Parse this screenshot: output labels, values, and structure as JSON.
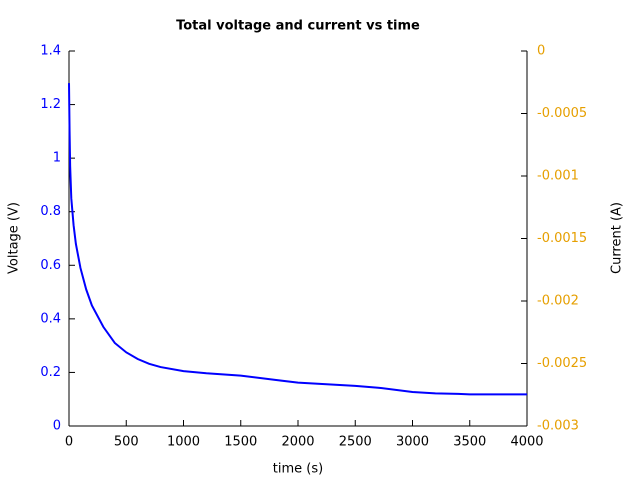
{
  "chart_data": {
    "type": "line",
    "title": "Total voltage and current vs time",
    "x_label": "time (s)",
    "y_label": "Voltage (V)",
    "y2_label": "Current (A)",
    "xlim": [
      0,
      4000
    ],
    "xticks": [
      0,
      500,
      1000,
      1500,
      2000,
      2500,
      3000,
      3500,
      4000
    ],
    "ylim": [
      0,
      1.4
    ],
    "yticks": [
      0,
      0.2,
      0.4,
      0.6,
      0.8,
      1,
      1.2,
      1.4
    ],
    "y_color": "#0000ff",
    "y2lim": [
      -0.003,
      0
    ],
    "y2ticks": [
      0,
      -0.0005,
      -0.001,
      -0.0015,
      -0.002,
      -0.0025,
      -0.003
    ],
    "y2_color": "#e69f00",
    "grid": false,
    "x": [
      0,
      5,
      10,
      20,
      40,
      60,
      100,
      150,
      200,
      300,
      400,
      500,
      600,
      700,
      800,
      1000,
      1200,
      1500,
      1800,
      2000,
      2500,
      2700,
      3000,
      3200,
      3400,
      3500,
      4000
    ],
    "series": [
      {
        "name": "Voltage (V)",
        "color": "#0000ff",
        "values": [
          1.28,
          1.1,
          0.97,
          0.85,
          0.75,
          0.68,
          0.59,
          0.51,
          0.45,
          0.37,
          0.31,
          0.275,
          0.25,
          0.232,
          0.22,
          0.205,
          0.197,
          0.188,
          0.172,
          0.162,
          0.15,
          0.143,
          0.127,
          0.122,
          0.12,
          0.118,
          0.118
        ]
      }
    ]
  }
}
